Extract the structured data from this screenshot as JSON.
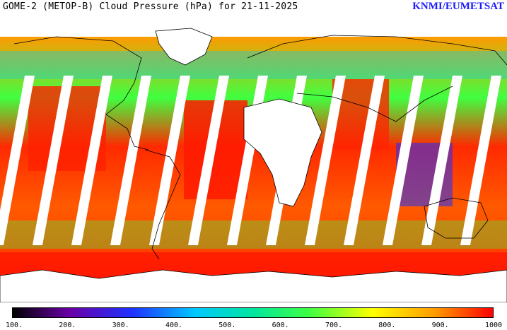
{
  "header": {
    "title": "GOME-2 (METOP-B) Cloud Pressure (hPa) for 21-11-2025",
    "credit": "KNMI/EUMETSAT"
  },
  "map": {
    "projection": "global equirectangular",
    "background_color": "#ffffff",
    "coastline_color": "#000000",
    "swath_gap_count": 13
  },
  "colorbar": {
    "min": 100,
    "max": 1000,
    "tick_labels": [
      "100.",
      "200.",
      "300.",
      "400.",
      "500.",
      "600.",
      "700.",
      "800.",
      "900.",
      "1000"
    ],
    "colors": [
      "#000000",
      "#6a00a8",
      "#1e32ff",
      "#00c8ff",
      "#00e6a0",
      "#40ff40",
      "#ffff00",
      "#ff9a00",
      "#ff0000"
    ]
  }
}
